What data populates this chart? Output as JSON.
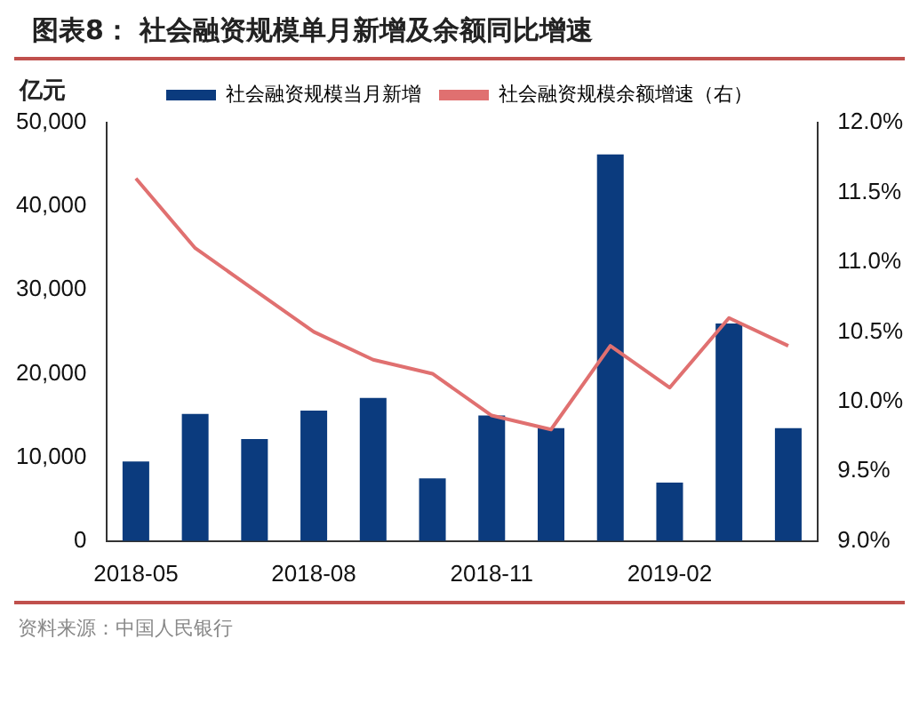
{
  "chart_data": {
    "type": "bar",
    "title": "图表8：  社会融资规模单月新增及余额同比增速",
    "ylabel": "亿元",
    "categories": [
      "2018-05",
      null,
      null,
      "2018-08",
      null,
      null,
      "2018-11",
      null,
      null,
      "2019-02",
      null,
      null
    ],
    "series": [
      {
        "name": "社会融资规模当月新增",
        "color": "#0b3b7e",
        "values": [
          9500,
          15200,
          12200,
          15600,
          17100,
          7500,
          15000,
          13500,
          46200,
          7000,
          26000,
          13500
        ]
      },
      {
        "name": "社会融资规模余额增速（右）",
        "type": "line",
        "axis": "y2",
        "color": "#e07070",
        "values": [
          11.6,
          11.1,
          10.8,
          10.5,
          10.3,
          10.2,
          9.9,
          9.8,
          10.4,
          10.1,
          10.6,
          10.4
        ]
      }
    ],
    "ylim": [
      0,
      50000
    ],
    "yticks": [
      0,
      {
        "value": 10000,
        "label": "10,000"
      },
      {
        "value": 20000,
        "label": "20,000"
      },
      {
        "value": 30000,
        "label": "30,000"
      },
      {
        "value": 40000,
        "label": "40,000"
      },
      {
        "value": 50000,
        "label": "50,000"
      }
    ],
    "y2lim": [
      9,
      12
    ],
    "y2ticks": [
      {
        "value": 9,
        "label": "9.0%"
      },
      {
        "value": 9.5,
        "label": "9.5%"
      },
      {
        "value": 10,
        "label": "10.0%"
      },
      {
        "value": 10.5,
        "label": "10.5%"
      },
      {
        "value": 11,
        "label": "11.0%"
      },
      {
        "value": 11.5,
        "label": "11.5%"
      },
      {
        "value": 12,
        "label": "12.0%"
      }
    ],
    "grid": false,
    "legend": "top",
    "marker": "none",
    "line_style": "solid",
    "annotations": [
      "资料来源：中国人民银行"
    ]
  }
}
